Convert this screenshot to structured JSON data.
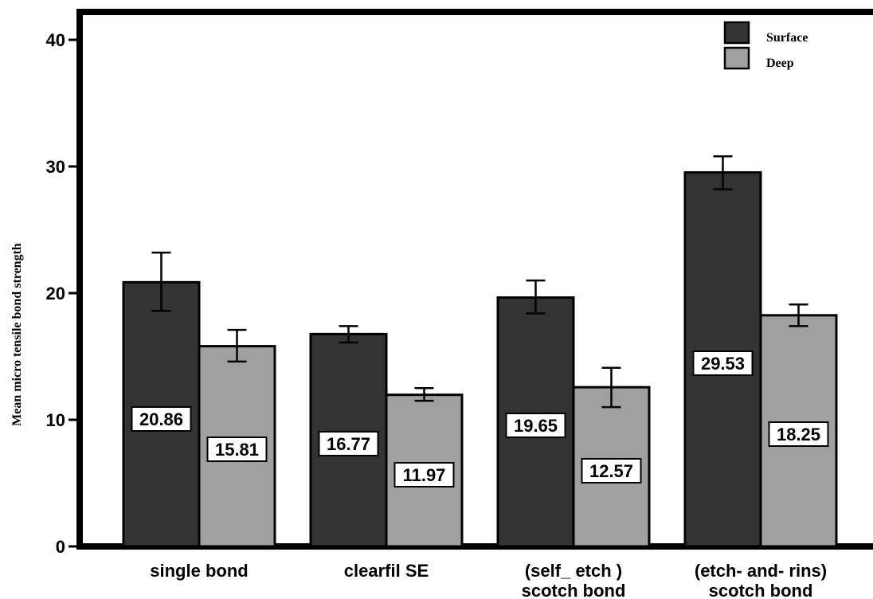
{
  "chart_data": {
    "type": "bar",
    "title": "",
    "xlabel": "",
    "ylabel": "Mean micro tensile bond strength",
    "ylim": [
      0,
      42
    ],
    "yticks": [
      "0",
      "10",
      "20",
      "30",
      "40"
    ],
    "grid": false,
    "legend_position": "top-right",
    "categories": [
      [
        "single bond"
      ],
      [
        "clearfil SE"
      ],
      [
        "(self_ etch )",
        "scotch bond"
      ],
      [
        "(etch- and- rins)",
        "scotch bond"
      ]
    ],
    "series": [
      {
        "name": "Surface",
        "color": "#333333",
        "values": [
          20.86,
          16.77,
          19.65,
          29.53
        ],
        "error_low": [
          18.6,
          16.1,
          18.4,
          28.2
        ],
        "error_high": [
          23.2,
          17.4,
          21.0,
          30.8
        ],
        "data_labels": [
          "20.86",
          "16.77",
          "19.65",
          "29.53"
        ]
      },
      {
        "name": "Deep",
        "color": "#a0a0a0",
        "values": [
          15.81,
          11.97,
          12.57,
          18.25
        ],
        "error_low": [
          14.6,
          11.5,
          11.0,
          17.4
        ],
        "error_high": [
          17.1,
          12.5,
          14.1,
          19.1
        ],
        "data_labels": [
          "15.81",
          "11.97",
          "12.57",
          "18.25"
        ]
      }
    ]
  }
}
